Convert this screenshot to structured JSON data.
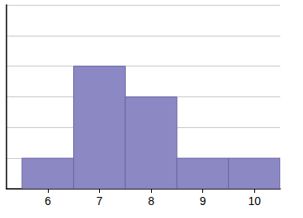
{
  "chart_data": {
    "type": "histogram",
    "bins": [
      5.5,
      6.5,
      7.5,
      8.5,
      9.5,
      10.5
    ],
    "values": [
      1,
      4,
      3,
      1,
      1
    ],
    "color": "#8c88c4",
    "xlim": [
      5.2,
      10.5
    ],
    "xticks": [
      6,
      7,
      8,
      9,
      10
    ],
    "ylim": [
      0,
      6
    ],
    "yticks": [
      0,
      1,
      2,
      3,
      4,
      5,
      6
    ],
    "grid": true,
    "tick_labels": "x"
  }
}
